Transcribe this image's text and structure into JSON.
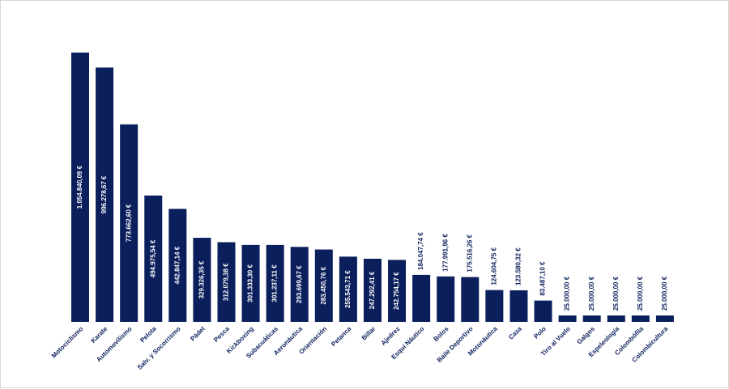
{
  "chart_data": {
    "type": "bar",
    "categories": [
      "Motociclismo",
      "Karate",
      "Automovilismo",
      "Pelota",
      "Salv. y Socorrismo",
      "Pádel",
      "Pesca",
      "Kickboxing",
      "Subacuáticas",
      "Aeronáutica",
      "Orientación",
      "Petanca",
      "Billar",
      "Ajedrez",
      "Esquí Náutico",
      "Bolos",
      "Baile Deportivo",
      "Motonáutica",
      "Caza",
      "Polo",
      "Tiro al Vuelo",
      "Galgos",
      "Espeleología",
      "Colombófila",
      "Colombicultura"
    ],
    "values": [
      1054840.09,
      996278.67,
      773662.6,
      494975.54,
      442847.14,
      329326.35,
      312079.38,
      301333.3,
      301237.11,
      293699.67,
      283450.76,
      255543.71,
      247292.41,
      242754.17,
      184047.74,
      177991.96,
      175516.26,
      124604.75,
      123580.32,
      83487.1,
      25000.0,
      25000.0,
      25000.0,
      25000.0,
      25000.0
    ],
    "value_labels": [
      "1.054.840,09 €",
      "996.278,67 €",
      "773.662,60 €",
      "494.975,54 €",
      "442.847,14 €",
      "329.326,35 €",
      "312.079,38 €",
      "301.333,30 €",
      "301.237,11 €",
      "293.699,67 €",
      "283.450,76 €",
      "255.543,71 €",
      "247.292,41 €",
      "242.754,17 €",
      "184.047,74 €",
      "177.991,96 €",
      "175.516,26 €",
      "124.604,75 €",
      "123.580,32 €",
      "83.487,10 €",
      "25.000,00 €",
      "25.000,00 €",
      "25.000,00 €",
      "25.000,00 €",
      "25.000,00 €"
    ],
    "title": "",
    "xlabel": "",
    "ylabel": "",
    "ylim": [
      0,
      1054840.09
    ],
    "grid": false,
    "legend": "none",
    "color": "#0b1f5c"
  }
}
